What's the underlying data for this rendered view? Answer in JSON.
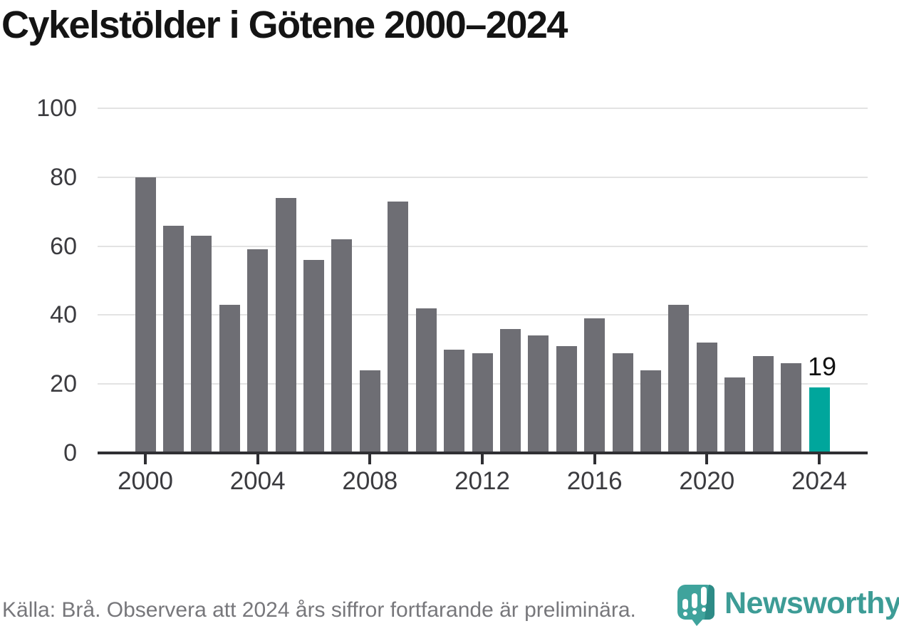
{
  "header": {
    "title": "Cykelstölder i Götene 2000–2024"
  },
  "chart_data": {
    "type": "bar",
    "title": "Cykelstölder i Götene 2000–2024",
    "categories": [
      "2000",
      "2001",
      "2002",
      "2003",
      "2004",
      "2005",
      "2006",
      "2007",
      "2008",
      "2009",
      "2010",
      "2011",
      "2012",
      "2013",
      "2014",
      "2015",
      "2016",
      "2017",
      "2018",
      "2019",
      "2020",
      "2021",
      "2022",
      "2023",
      "2024"
    ],
    "values": [
      80,
      66,
      63,
      43,
      59,
      74,
      56,
      62,
      24,
      73,
      42,
      30,
      29,
      36,
      34,
      31,
      39,
      29,
      24,
      43,
      32,
      22,
      28,
      26,
      19
    ],
    "xlabel": "",
    "ylabel": "",
    "ylim": [
      0,
      100
    ],
    "yticks": [
      0,
      20,
      40,
      60,
      80,
      100
    ],
    "xtick_labels": [
      "2000",
      "2004",
      "2008",
      "2012",
      "2016",
      "2020",
      "2024"
    ],
    "grid": "horizontal",
    "legend": "none",
    "bar_color": "#6e6e74",
    "highlight": {
      "category": "2024",
      "color": "#00a69c",
      "label": "19"
    }
  },
  "footer": {
    "source": "Källa: Brå. Observera att 2024 års siffror fortfarande är preliminära.",
    "brand": "Newsworthy"
  },
  "colors": {
    "axis": "#2f2f33",
    "grid": "#e3e3e3",
    "tick_text": "#3b3b3f",
    "title_text": "#141414",
    "footer_text": "#77777b",
    "brand_teal": "#3d9c96",
    "brand_teal_dark": "#2d8b86",
    "highlight_teal": "#00a69c",
    "bar_gray": "#6e6e74"
  }
}
